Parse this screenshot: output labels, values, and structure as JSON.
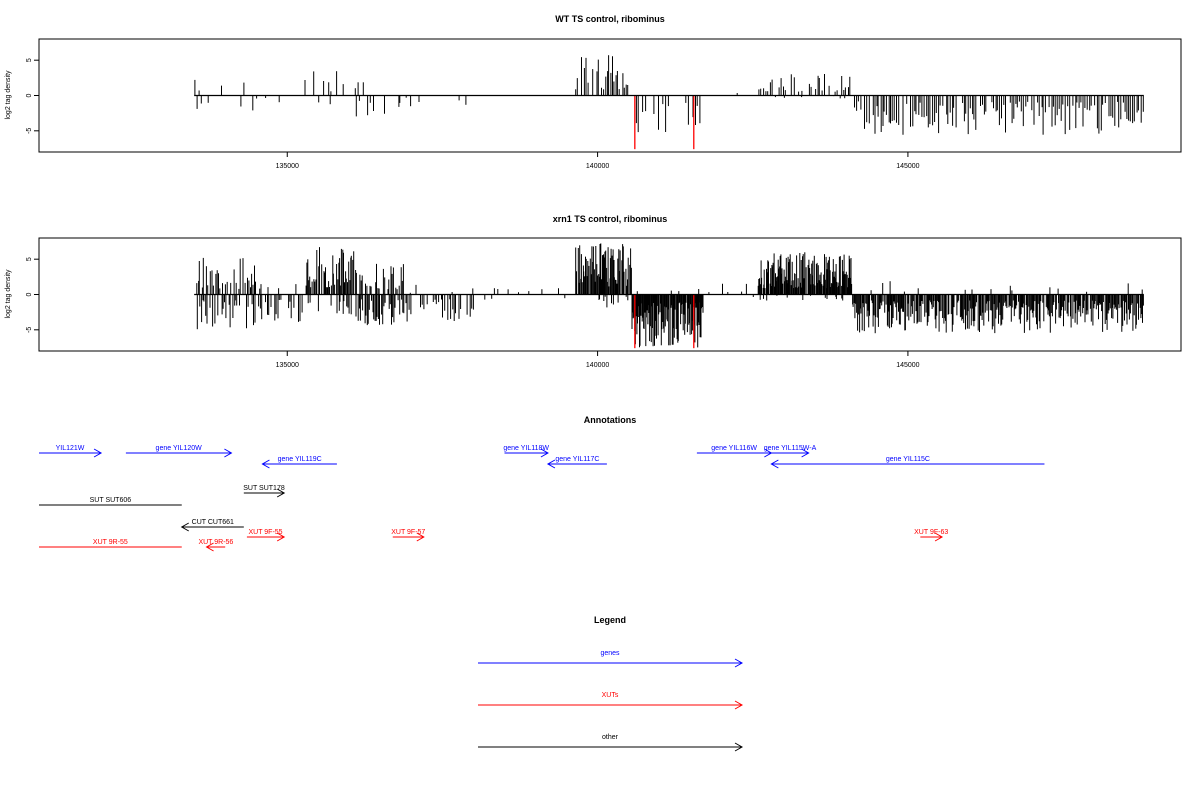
{
  "chart_data": [
    {
      "type": "bar",
      "title": "WT TS control, ribominus",
      "ylabel": "log2 tag density",
      "xlabel": "",
      "xlim": [
        131000,
        149400
      ],
      "ylim": [
        -8,
        8
      ],
      "x_ticks": [
        135000,
        140000,
        145000
      ],
      "y_ticks": [
        -5,
        0,
        5
      ],
      "x_tick_labels": [
        "135000",
        "140000",
        "145000"
      ],
      "y_tick_labels": [
        "-5",
        "0",
        "5"
      ],
      "baseline_range": [
        133500,
        148800
      ],
      "colors": {
        "default": "#000000",
        "highlight": "#ff0000"
      },
      "regions": [
        {
          "x": [
            133500,
            134500
          ],
          "spacing": 90,
          "pos_frac": 0.3,
          "neg_frac": 0.35,
          "pos_max": 3.0,
          "neg_max": 2.4
        },
        {
          "x": [
            134500,
            135300
          ],
          "spacing": 110,
          "pos_frac": 0.0,
          "neg_frac": 0.45,
          "pos_max": 0.5,
          "neg_max": 1.6
        },
        {
          "x": [
            135300,
            136100
          ],
          "spacing": 60,
          "pos_frac": 0.55,
          "neg_frac": 0.15,
          "pos_max": 3.5,
          "neg_max": 1.6
        },
        {
          "x": [
            136100,
            136800
          ],
          "spacing": 55,
          "pos_frac": 0.35,
          "neg_frac": 0.45,
          "pos_max": 3.0,
          "neg_max": 3.5
        },
        {
          "x": [
            136800,
            137100
          ],
          "spacing": 70,
          "pos_frac": 0.0,
          "neg_frac": 0.5,
          "pos_max": 0.5,
          "neg_max": 1.8
        },
        {
          "x": [
            137100,
            138000
          ],
          "spacing": 120,
          "pos_frac": 0.0,
          "neg_frac": 0.35,
          "pos_max": 0.5,
          "neg_max": 1.6
        },
        {
          "x": [
            138000,
            139600
          ],
          "spacing": 400,
          "pos_frac": 0.0,
          "neg_frac": 0.0,
          "pos_max": 0.2,
          "neg_max": 0.2
        },
        {
          "x": [
            139650,
            140500
          ],
          "spacing": 28,
          "pos_frac": 0.7,
          "neg_frac": 0.0,
          "pos_max": 5.8,
          "neg_max": 0.5
        },
        {
          "x": [
            140500,
            140600
          ],
          "spacing": 50,
          "pos_frac": 0.4,
          "neg_frac": 0.6,
          "pos_max": 2.2,
          "neg_max": 1.8
        },
        {
          "x": [
            140600,
            141650
          ],
          "spacing": 40,
          "pos_frac": 0.05,
          "neg_frac": 0.55,
          "pos_max": 0.8,
          "neg_max": 5.3
        },
        {
          "x": [
            141650,
            142600
          ],
          "spacing": 200,
          "pos_frac": 0.1,
          "neg_frac": 0.1,
          "pos_max": 0.5,
          "neg_max": 0.6
        },
        {
          "x": [
            142600,
            144100
          ],
          "spacing": 35,
          "pos_frac": 0.7,
          "neg_frac": 0.05,
          "pos_max": 3.3,
          "neg_max": 0.5
        },
        {
          "x": [
            144100,
            148800
          ],
          "spacing": 32,
          "pos_frac": 0.0,
          "neg_frac": 0.8,
          "pos_max": 0.5,
          "neg_max": 5.6
        }
      ],
      "highlight_bars": [
        {
          "x": 140600,
          "value": -7.6
        },
        {
          "x": 141550,
          "value": -7.6
        }
      ]
    },
    {
      "type": "bar",
      "title": "xrn1 TS control, ribominus",
      "ylabel": "log2 tag density",
      "xlabel": "",
      "xlim": [
        131000,
        149400
      ],
      "ylim": [
        -8,
        8
      ],
      "x_ticks": [
        135000,
        140000,
        145000
      ],
      "y_ticks": [
        -5,
        0,
        5
      ],
      "x_tick_labels": [
        "135000",
        "140000",
        "145000"
      ],
      "y_tick_labels": [
        "-5",
        "0",
        "5"
      ],
      "baseline_range": [
        133500,
        148800
      ],
      "colors": {
        "default": "#000000",
        "highlight": "#ff0000"
      },
      "regions": [
        {
          "x": [
            133500,
            134500
          ],
          "spacing": 22,
          "pos_frac": 0.6,
          "neg_frac": 0.65,
          "pos_max": 5.2,
          "neg_max": 5.0
        },
        {
          "x": [
            134500,
            135300
          ],
          "spacing": 28,
          "pos_frac": 0.15,
          "neg_frac": 0.7,
          "pos_max": 1.5,
          "neg_max": 4.0
        },
        {
          "x": [
            135300,
            136100
          ],
          "spacing": 16,
          "pos_frac": 0.85,
          "neg_frac": 0.3,
          "pos_max": 6.8,
          "neg_max": 3.0
        },
        {
          "x": [
            136100,
            136900
          ],
          "spacing": 18,
          "pos_frac": 0.6,
          "neg_frac": 0.7,
          "pos_max": 4.5,
          "neg_max": 4.5
        },
        {
          "x": [
            136900,
            138000
          ],
          "spacing": 26,
          "pos_frac": 0.1,
          "neg_frac": 0.7,
          "pos_max": 1.5,
          "neg_max": 4.0
        },
        {
          "x": [
            138000,
            139600
          ],
          "spacing": 80,
          "pos_frac": 0.25,
          "neg_frac": 0.1,
          "pos_max": 1.2,
          "neg_max": 0.8
        },
        {
          "x": [
            139650,
            140550
          ],
          "spacing": 13,
          "pos_frac": 0.9,
          "neg_frac": 0.15,
          "pos_max": 7.3,
          "neg_max": 2.0
        },
        {
          "x": [
            140550,
            141700
          ],
          "spacing": 11,
          "pos_frac": 0.05,
          "neg_frac": 0.95,
          "pos_max": 0.8,
          "neg_max": 7.5
        },
        {
          "x": [
            141700,
            142600
          ],
          "spacing": 80,
          "pos_frac": 0.35,
          "neg_frac": 0.2,
          "pos_max": 1.8,
          "neg_max": 1.2
        },
        {
          "x": [
            142600,
            144100
          ],
          "spacing": 11,
          "pos_frac": 0.9,
          "neg_frac": 0.1,
          "pos_max": 6.0,
          "neg_max": 1.0
        },
        {
          "x": [
            144100,
            148800
          ],
          "spacing": 14,
          "pos_frac": 0.03,
          "neg_frac": 0.9,
          "pos_max": 2.0,
          "neg_max": 5.5
        }
      ],
      "highlight_bars": [
        {
          "x": 140600,
          "value": -7.6
        },
        {
          "x": 141550,
          "value": -7.6
        }
      ]
    }
  ],
  "annotations": {
    "title": "Annotations",
    "features": [
      {
        "label": "YIL121W",
        "kind": "gene",
        "strand": "+",
        "start": 131000,
        "end": 132000,
        "row": 0
      },
      {
        "label": "gene YIL120W",
        "kind": "gene",
        "strand": "+",
        "start": 132400,
        "end": 134100,
        "row": 0
      },
      {
        "label": "gene YIL119C",
        "kind": "gene",
        "strand": "-",
        "start": 134600,
        "end": 135800,
        "row": 1
      },
      {
        "label": "gene YIL118W",
        "kind": "gene",
        "strand": "+",
        "start": 138500,
        "end": 139200,
        "row": 0
      },
      {
        "label": "gene YIL117C",
        "kind": "gene",
        "strand": "-",
        "start": 139200,
        "end": 140150,
        "row": 1
      },
      {
        "label": "gene YIL116W",
        "kind": "gene",
        "strand": "+",
        "start": 141600,
        "end": 142800,
        "row": 0
      },
      {
        "label": "gene YIL115W-A",
        "kind": "gene",
        "strand": "+",
        "start": 142800,
        "end": 143400,
        "row": 0
      },
      {
        "label": "gene YIL115C",
        "kind": "gene",
        "strand": "-",
        "start": 142800,
        "end": 147200,
        "row": 1
      },
      {
        "label": "SUT SUT606",
        "kind": "other",
        "strand": ".",
        "start": 131000,
        "end": 133300,
        "row": 3
      },
      {
        "label": "SUT SUT178",
        "kind": "other",
        "strand": "+",
        "start": 134300,
        "end": 134950,
        "row": 2
      },
      {
        "label": "CUT CUT661",
        "kind": "other",
        "strand": "-",
        "start": 133300,
        "end": 134300,
        "row": 4
      },
      {
        "label": "XUT 9R-55",
        "kind": "xut",
        "strand": ".",
        "start": 131000,
        "end": 133300,
        "row": 6
      },
      {
        "label": "XUT 9R-56",
        "kind": "xut",
        "strand": "-",
        "start": 133700,
        "end": 134000,
        "row": 6
      },
      {
        "label": "XUT 9F-55",
        "kind": "xut",
        "strand": "+",
        "start": 134350,
        "end": 134950,
        "row": 5
      },
      {
        "label": "XUT 9F-57",
        "kind": "xut",
        "strand": "+",
        "start": 136700,
        "end": 137200,
        "row": 5
      },
      {
        "label": "XUT 9F-63",
        "kind": "xut",
        "strand": "+",
        "start": 145200,
        "end": 145550,
        "row": 5
      }
    ]
  },
  "legend": {
    "title": "Legend",
    "items": [
      {
        "label": "genes",
        "kind": "gene"
      },
      {
        "label": "XUTs",
        "kind": "xut"
      },
      {
        "label": "other",
        "kind": "other"
      }
    ]
  },
  "colors": {
    "gene": "#0000ff",
    "xut": "#ff0000",
    "other": "#000000"
  }
}
